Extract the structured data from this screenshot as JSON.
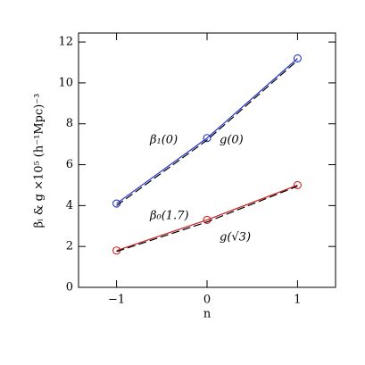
{
  "chart_data": {
    "type": "line",
    "x_label": "n",
    "y_label": "βᵢ & g ×10⁵ (h⁻¹Mpc)⁻³",
    "x": [
      -1,
      0,
      1
    ],
    "xlim": [
      -1.42,
      1.42
    ],
    "xticks": [
      {
        "value": -1,
        "label": "−1"
      },
      0,
      1
    ],
    "ylim": [
      0,
      12.44
    ],
    "yticks": [
      0,
      2,
      4,
      6,
      8,
      10,
      12
    ],
    "series": [
      {
        "name": "β₁(0)",
        "color": "#2233cc",
        "style": "solid",
        "markers": true,
        "values": [
          4.1,
          7.3,
          11.2
        ]
      },
      {
        "name": "g(0)",
        "color": "#000000",
        "style": "dashed",
        "markers": false,
        "values": [
          4.0,
          7.2,
          11.1
        ]
      },
      {
        "name": "β₀(1.7)",
        "color": "#cc2222",
        "style": "solid",
        "markers": true,
        "values": [
          1.8,
          3.3,
          5.0
        ]
      },
      {
        "name": "g(√3)",
        "color": "#000000",
        "style": "dashed",
        "markers": false,
        "values": [
          1.75,
          3.2,
          4.95
        ]
      }
    ]
  }
}
